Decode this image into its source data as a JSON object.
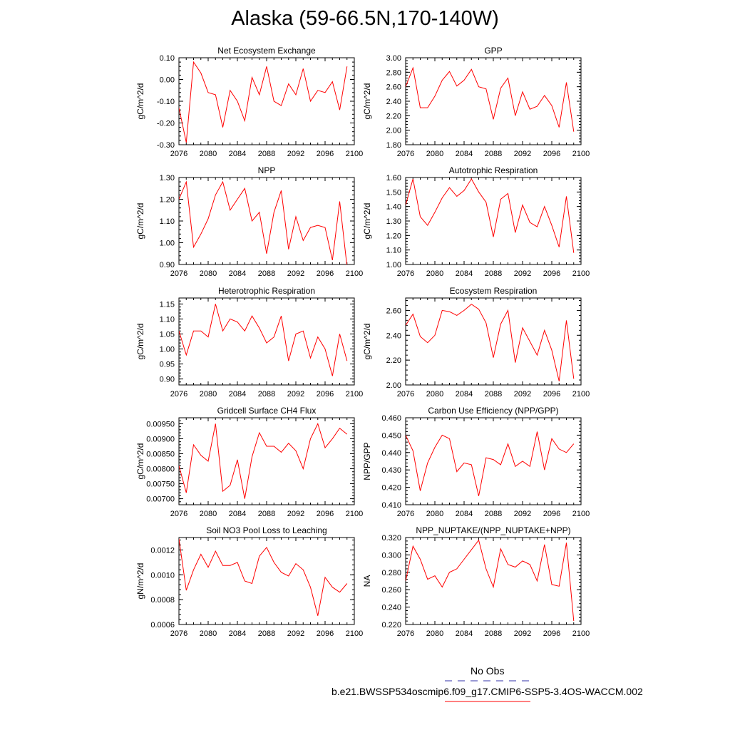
{
  "title": "Alaska (59-66.5N,170-140W)",
  "colors": {
    "series": "#ff0000",
    "obs": "#3333aa",
    "axis": "#000000"
  },
  "legend": {
    "obs_label": "No Obs",
    "case_label": "b.e21.BWSSP534oscmip6.f09_g17.CMIP6-SSP5-3.4OS-WACCM.002"
  },
  "chart_data": [
    {
      "type": "line",
      "title": "Net Ecosystem Exchange",
      "ylabel": "gC/m^2/d",
      "xlim": [
        2076,
        2100
      ],
      "ylim": [
        -0.3,
        0.1
      ],
      "xticks": [
        2076,
        2080,
        2084,
        2088,
        2092,
        2096,
        2100
      ],
      "xtick_labels": [
        "2076",
        "2080",
        "2084",
        "2088",
        "2092",
        "2096",
        "2100"
      ],
      "yticks": [
        -0.3,
        -0.2,
        -0.1,
        0.0,
        0.1
      ],
      "ytick_labels": [
        "-0.30",
        "-0.20",
        "-0.10",
        "0.00",
        "0.10"
      ],
      "x": [
        2076,
        2077,
        2078,
        2079,
        2080,
        2081,
        2082,
        2083,
        2084,
        2085,
        2086,
        2087,
        2088,
        2089,
        2090,
        2091,
        2092,
        2093,
        2094,
        2095,
        2096,
        2097,
        2098,
        2099
      ],
      "series": [
        {
          "values": [
            -0.13,
            -0.29,
            0.08,
            0.03,
            -0.06,
            -0.07,
            -0.22,
            -0.05,
            -0.1,
            -0.19,
            0.01,
            -0.07,
            0.06,
            -0.1,
            -0.12,
            -0.02,
            -0.07,
            0.05,
            -0.1,
            -0.05,
            -0.06,
            -0.01,
            -0.14,
            0.06
          ]
        }
      ]
    },
    {
      "type": "line",
      "title": "GPP",
      "ylabel": "gC/m^2/d",
      "xlim": [
        2076,
        2100
      ],
      "ylim": [
        1.8,
        3.0
      ],
      "xticks": [
        2076,
        2080,
        2084,
        2088,
        2092,
        2096,
        2100
      ],
      "xtick_labels": [
        "2076",
        "2080",
        "2084",
        "2088",
        "2092",
        "2096",
        "2100"
      ],
      "yticks": [
        1.8,
        2.0,
        2.2,
        2.4,
        2.6,
        2.8,
        3.0
      ],
      "ytick_labels": [
        "1.80",
        "2.00",
        "2.20",
        "2.40",
        "2.60",
        "2.80",
        "3.00"
      ],
      "x": [
        2076,
        2077,
        2078,
        2079,
        2080,
        2081,
        2082,
        2083,
        2084,
        2085,
        2086,
        2087,
        2088,
        2089,
        2090,
        2091,
        2092,
        2093,
        2094,
        2095,
        2096,
        2097,
        2098,
        2099
      ],
      "series": [
        {
          "values": [
            2.6,
            2.86,
            2.31,
            2.31,
            2.47,
            2.69,
            2.81,
            2.61,
            2.69,
            2.84,
            2.6,
            2.57,
            2.15,
            2.58,
            2.72,
            2.2,
            2.53,
            2.29,
            2.33,
            2.48,
            2.34,
            2.04,
            2.66,
            1.98
          ]
        }
      ]
    },
    {
      "type": "line",
      "title": "NPP",
      "ylabel": "gC/m^2/d",
      "xlim": [
        2076,
        2100
      ],
      "ylim": [
        0.9,
        1.3
      ],
      "xticks": [
        2076,
        2080,
        2084,
        2088,
        2092,
        2096,
        2100
      ],
      "xtick_labels": [
        "2076",
        "2080",
        "2084",
        "2088",
        "2092",
        "2096",
        "2100"
      ],
      "yticks": [
        0.9,
        1.0,
        1.1,
        1.2,
        1.3
      ],
      "ytick_labels": [
        "0.90",
        "1.00",
        "1.10",
        "1.20",
        "1.30"
      ],
      "x": [
        2076,
        2077,
        2078,
        2079,
        2080,
        2081,
        2082,
        2083,
        2084,
        2085,
        2086,
        2087,
        2088,
        2089,
        2090,
        2091,
        2092,
        2093,
        2094,
        2095,
        2096,
        2097,
        2098,
        2099
      ],
      "series": [
        {
          "values": [
            1.2,
            1.28,
            0.98,
            1.04,
            1.11,
            1.22,
            1.28,
            1.15,
            1.2,
            1.25,
            1.1,
            1.14,
            0.95,
            1.14,
            1.24,
            0.97,
            1.12,
            1.01,
            1.07,
            1.08,
            1.07,
            0.92,
            1.19,
            0.89
          ]
        }
      ]
    },
    {
      "type": "line",
      "title": "Autotrophic Respiration",
      "ylabel": "gC/m^2/d",
      "xlim": [
        2076,
        2100
      ],
      "ylim": [
        1.0,
        1.6
      ],
      "xticks": [
        2076,
        2080,
        2084,
        2088,
        2092,
        2096,
        2100
      ],
      "xtick_labels": [
        "2076",
        "2080",
        "2084",
        "2088",
        "2092",
        "2096",
        "2100"
      ],
      "yticks": [
        1.0,
        1.1,
        1.2,
        1.3,
        1.4,
        1.5,
        1.6
      ],
      "ytick_labels": [
        "1.00",
        "1.10",
        "1.20",
        "1.30",
        "1.40",
        "1.50",
        "1.60"
      ],
      "x": [
        2076,
        2077,
        2078,
        2079,
        2080,
        2081,
        2082,
        2083,
        2084,
        2085,
        2086,
        2087,
        2088,
        2089,
        2090,
        2091,
        2092,
        2093,
        2094,
        2095,
        2096,
        2097,
        2098,
        2099
      ],
      "series": [
        {
          "values": [
            1.41,
            1.59,
            1.33,
            1.27,
            1.36,
            1.46,
            1.53,
            1.47,
            1.51,
            1.59,
            1.5,
            1.43,
            1.19,
            1.45,
            1.49,
            1.22,
            1.41,
            1.29,
            1.26,
            1.4,
            1.27,
            1.12,
            1.47,
            1.08
          ]
        }
      ]
    },
    {
      "type": "line",
      "title": "Heterotrophic Respiration",
      "ylabel": "gC/m^2/d",
      "xlim": [
        2076,
        2100
      ],
      "ylim": [
        0.88,
        1.17
      ],
      "xticks": [
        2076,
        2080,
        2084,
        2088,
        2092,
        2096,
        2100
      ],
      "xtick_labels": [
        "2076",
        "2080",
        "2084",
        "2088",
        "2092",
        "2096",
        "2100"
      ],
      "yticks": [
        0.9,
        0.95,
        1.0,
        1.05,
        1.1,
        1.15
      ],
      "ytick_labels": [
        "0.90",
        "0.95",
        "1.00",
        "1.05",
        "1.10",
        "1.15"
      ],
      "x": [
        2076,
        2077,
        2078,
        2079,
        2080,
        2081,
        2082,
        2083,
        2084,
        2085,
        2086,
        2087,
        2088,
        2089,
        2090,
        2091,
        2092,
        2093,
        2094,
        2095,
        2096,
        2097,
        2098,
        2099
      ],
      "series": [
        {
          "values": [
            1.06,
            0.98,
            1.06,
            1.06,
            1.04,
            1.15,
            1.06,
            1.1,
            1.09,
            1.06,
            1.11,
            1.07,
            1.02,
            1.04,
            1.11,
            0.96,
            1.05,
            1.06,
            0.97,
            1.04,
            1.0,
            0.91,
            1.05,
            0.96
          ]
        }
      ]
    },
    {
      "type": "line",
      "title": "Ecosystem Respiration",
      "ylabel": "gC/m^2/d",
      "xlim": [
        2076,
        2100
      ],
      "ylim": [
        2.0,
        2.7
      ],
      "xticks": [
        2076,
        2080,
        2084,
        2088,
        2092,
        2096,
        2100
      ],
      "xtick_labels": [
        "2076",
        "2080",
        "2084",
        "2088",
        "2092",
        "2096",
        "2100"
      ],
      "yticks": [
        2.0,
        2.2,
        2.4,
        2.6
      ],
      "ytick_labels": [
        "2.00",
        "2.20",
        "2.40",
        "2.60"
      ],
      "x": [
        2076,
        2077,
        2078,
        2079,
        2080,
        2081,
        2082,
        2083,
        2084,
        2085,
        2086,
        2087,
        2088,
        2089,
        2090,
        2091,
        2092,
        2093,
        2094,
        2095,
        2096,
        2097,
        2098,
        2099
      ],
      "series": [
        {
          "values": [
            2.48,
            2.57,
            2.39,
            2.34,
            2.4,
            2.6,
            2.59,
            2.56,
            2.6,
            2.65,
            2.61,
            2.5,
            2.22,
            2.49,
            2.6,
            2.18,
            2.46,
            2.35,
            2.24,
            2.44,
            2.28,
            2.03,
            2.52,
            2.05
          ]
        }
      ]
    },
    {
      "type": "line",
      "title": "Gridcell Surface CH4 Flux",
      "ylabel": "gC/m^2/d",
      "xlim": [
        2076,
        2100
      ],
      "ylim": [
        0.0068,
        0.0097
      ],
      "xticks": [
        2076,
        2080,
        2084,
        2088,
        2092,
        2096,
        2100
      ],
      "xtick_labels": [
        "2076",
        "2080",
        "2084",
        "2088",
        "2092",
        "2096",
        "2100"
      ],
      "yticks": [
        0.007,
        0.0075,
        0.008,
        0.0085,
        0.009,
        0.0095
      ],
      "ytick_labels": [
        "0.00700",
        "0.00750",
        "0.00800",
        "0.00850",
        "0.00900",
        "0.00950"
      ],
      "x": [
        2076,
        2077,
        2078,
        2079,
        2080,
        2081,
        2082,
        2083,
        2084,
        2085,
        2086,
        2087,
        2088,
        2089,
        2090,
        2091,
        2092,
        2093,
        2094,
        2095,
        2096,
        2097,
        2098,
        2099
      ],
      "series": [
        {
          "values": [
            0.0081,
            0.0072,
            0.0088,
            0.00845,
            0.00825,
            0.0095,
            0.00725,
            0.00745,
            0.0083,
            0.007,
            0.0084,
            0.0092,
            0.00875,
            0.00875,
            0.00855,
            0.00885,
            0.0086,
            0.008,
            0.009,
            0.0095,
            0.0087,
            0.009,
            0.00935,
            0.00915
          ]
        }
      ]
    },
    {
      "type": "line",
      "title": "Carbon Use Efficiency (NPP/GPP)",
      "ylabel": "NPP/GPP",
      "xlim": [
        2076,
        2100
      ],
      "ylim": [
        0.41,
        0.46
      ],
      "xticks": [
        2076,
        2080,
        2084,
        2088,
        2092,
        2096,
        2100
      ],
      "xtick_labels": [
        "2076",
        "2080",
        "2084",
        "2088",
        "2092",
        "2096",
        "2100"
      ],
      "yticks": [
        0.41,
        0.42,
        0.43,
        0.44,
        0.45,
        0.46
      ],
      "ytick_labels": [
        "0.410",
        "0.420",
        "0.430",
        "0.440",
        "0.450",
        "0.460"
      ],
      "x": [
        2076,
        2077,
        2078,
        2079,
        2080,
        2081,
        2082,
        2083,
        2084,
        2085,
        2086,
        2087,
        2088,
        2089,
        2090,
        2091,
        2092,
        2093,
        2094,
        2095,
        2096,
        2097,
        2098,
        2099
      ],
      "series": [
        {
          "values": [
            0.45,
            0.441,
            0.418,
            0.434,
            0.443,
            0.45,
            0.448,
            0.429,
            0.434,
            0.433,
            0.415,
            0.437,
            0.436,
            0.433,
            0.445,
            0.432,
            0.435,
            0.432,
            0.452,
            0.43,
            0.448,
            0.442,
            0.44,
            0.445
          ]
        }
      ]
    },
    {
      "type": "line",
      "title": "Soil NO3 Pool Loss to Leaching",
      "ylabel": "gN/m^2/d",
      "xlim": [
        2076,
        2100
      ],
      "ylim": [
        0.0006,
        0.0013
      ],
      "xticks": [
        2076,
        2080,
        2084,
        2088,
        2092,
        2096,
        2100
      ],
      "xtick_labels": [
        "2076",
        "2080",
        "2084",
        "2088",
        "2092",
        "2096",
        "2100"
      ],
      "yticks": [
        0.0006,
        0.0008,
        0.001,
        0.0012
      ],
      "ytick_labels": [
        "0.0006",
        "0.0008",
        "0.0010",
        "0.0012"
      ],
      "x": [
        2076,
        2077,
        2078,
        2079,
        2080,
        2081,
        2082,
        2083,
        2084,
        2085,
        2086,
        2087,
        2088,
        2089,
        2090,
        2091,
        2092,
        2093,
        2094,
        2095,
        2096,
        2097,
        2098,
        2099
      ],
      "series": [
        {
          "values": [
            0.00129,
            0.000875,
            0.00104,
            0.001165,
            0.00106,
            0.00119,
            0.001075,
            0.001075,
            0.0011,
            0.00095,
            0.00093,
            0.00115,
            0.00122,
            0.0011,
            0.00102,
            0.00099,
            0.00109,
            0.00104,
            0.0009,
            0.00067,
            0.00098,
            0.0009,
            0.00086,
            0.00093
          ]
        }
      ]
    },
    {
      "type": "line",
      "title": "NPP_NUPTAKE/(NPP_NUPTAKE+NPP)",
      "ylabel": "NA",
      "xlim": [
        2076,
        2100
      ],
      "ylim": [
        0.22,
        0.32
      ],
      "xticks": [
        2076,
        2080,
        2084,
        2088,
        2092,
        2096,
        2100
      ],
      "xtick_labels": [
        "2076",
        "2080",
        "2084",
        "2088",
        "2092",
        "2096",
        "2100"
      ],
      "yticks": [
        0.22,
        0.24,
        0.26,
        0.28,
        0.3,
        0.32
      ],
      "ytick_labels": [
        "0.220",
        "0.240",
        "0.260",
        "0.280",
        "0.300",
        "0.320"
      ],
      "x": [
        2076,
        2077,
        2078,
        2079,
        2080,
        2081,
        2082,
        2083,
        2084,
        2085,
        2086,
        2087,
        2088,
        2089,
        2090,
        2091,
        2092,
        2093,
        2094,
        2095,
        2096,
        2097,
        2098,
        2099
      ],
      "series": [
        {
          "values": [
            0.27,
            0.31,
            0.295,
            0.272,
            0.276,
            0.263,
            0.28,
            0.284,
            0.295,
            0.306,
            0.317,
            0.284,
            0.263,
            0.307,
            0.289,
            0.286,
            0.293,
            0.289,
            0.27,
            0.312,
            0.266,
            0.264,
            0.314,
            0.224
          ]
        }
      ]
    }
  ]
}
